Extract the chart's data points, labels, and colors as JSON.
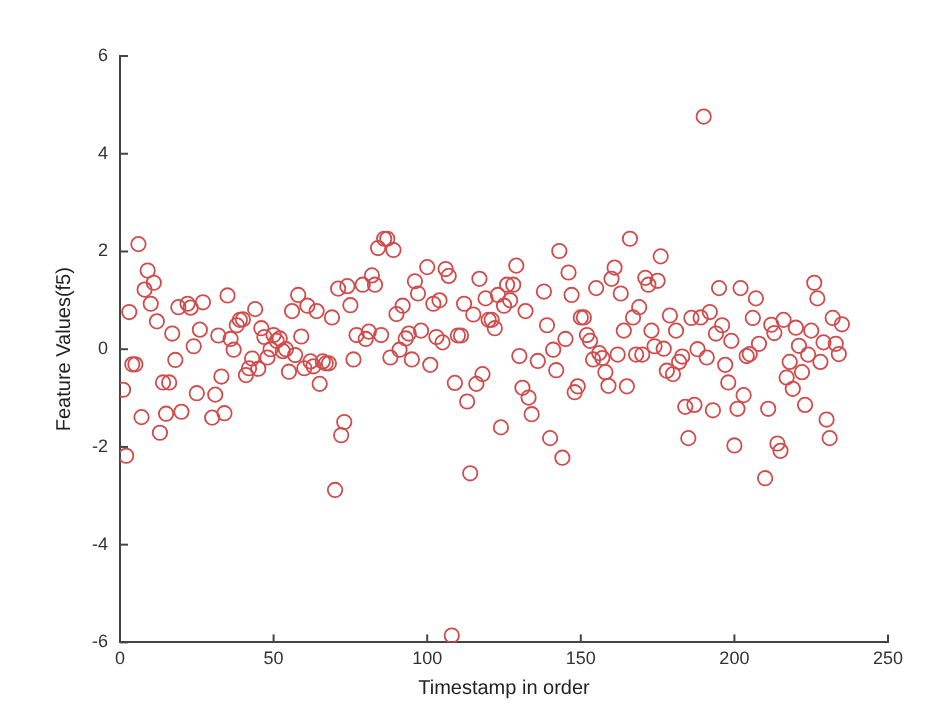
{
  "chart_data": {
    "type": "scatter",
    "xlabel": "Timestamp in order",
    "ylabel": "Feature Values(f5)",
    "marker": "circle",
    "grid": false,
    "legend": false,
    "xlim": [
      0,
      250
    ],
    "xticks": [
      0,
      50,
      100,
      150,
      200,
      250
    ],
    "ylim": [
      -6,
      6
    ],
    "yticks": [
      -6,
      -4,
      -2,
      0,
      2,
      4,
      6
    ],
    "series": [
      {
        "color": "#d24b4b",
        "x": [
          1,
          2,
          3,
          4,
          5,
          6,
          7,
          8,
          9,
          10,
          11,
          12,
          13,
          14,
          15,
          16,
          17,
          18,
          19,
          20,
          22,
          23,
          24,
          25,
          26,
          27,
          30,
          31,
          32,
          33,
          34,
          35,
          36,
          37,
          38,
          39,
          40,
          41,
          42,
          43,
          44,
          45,
          46,
          47,
          48,
          49,
          50,
          51,
          52,
          53,
          54,
          55,
          56,
          57,
          58,
          59,
          60,
          61,
          62,
          63,
          64,
          65,
          66,
          67,
          68,
          69,
          70,
          71,
          72,
          73,
          74,
          75,
          76,
          77,
          79,
          80,
          81,
          82,
          83,
          84,
          85,
          86,
          87,
          88,
          89,
          90,
          91,
          92,
          93,
          94,
          95,
          96,
          97,
          98,
          100,
          101,
          102,
          103,
          104,
          105,
          106,
          107,
          108,
          109,
          110,
          111,
          112,
          113,
          114,
          115,
          116,
          117,
          118,
          119,
          120,
          121,
          122,
          123,
          124,
          125,
          126,
          127,
          128,
          129,
          130,
          131,
          132,
          133,
          134,
          136,
          138,
          139,
          140,
          141,
          142,
          143,
          144,
          145,
          146,
          147,
          148,
          149,
          150,
          151,
          152,
          153,
          154,
          155,
          156,
          157,
          158,
          159,
          160,
          161,
          162,
          163,
          164,
          165,
          166,
          167,
          168,
          169,
          170,
          171,
          172,
          173,
          174,
          175,
          176,
          177,
          178,
          179,
          180,
          181,
          182,
          183,
          184,
          185,
          186,
          187,
          188,
          189,
          190,
          191,
          192,
          193,
          194,
          195,
          196,
          197,
          198,
          199,
          200,
          201,
          202,
          203,
          204,
          205,
          206,
          207,
          208,
          210,
          211,
          212,
          213,
          214,
          215,
          216,
          217,
          218,
          219,
          220,
          221,
          222,
          223,
          224,
          225,
          226,
          227,
          228,
          229,
          230,
          231,
          232,
          233,
          234,
          235
        ],
        "values": [
          -0.83,
          -2.18,
          0.76,
          -0.31,
          -0.31,
          2.15,
          -1.39,
          1.22,
          1.61,
          0.93,
          1.36,
          0.57,
          -1.71,
          -0.68,
          -1.32,
          -0.68,
          0.32,
          -0.22,
          0.86,
          -1.28,
          0.93,
          0.85,
          0.06,
          -0.9,
          0.4,
          0.96,
          -1.4,
          -0.93,
          0.28,
          -0.56,
          -1.31,
          1.1,
          0.21,
          -0.01,
          0.49,
          0.6,
          0.61,
          -0.53,
          -0.39,
          -0.19,
          0.82,
          -0.4,
          0.43,
          0.25,
          -0.17,
          0,
          0.29,
          0.17,
          0.22,
          -0.04,
          0,
          -0.46,
          0.78,
          -0.12,
          1.11,
          0.26,
          -0.39,
          0.89,
          -0.25,
          -0.35,
          0.78,
          -0.71,
          -0.25,
          -0.29,
          -0.29,
          0.65,
          -2.88,
          1.24,
          -1.76,
          -1.49,
          1.29,
          0.9,
          -0.21,
          0.29,
          1.32,
          0.21,
          0.36,
          1.51,
          1.32,
          2.07,
          0.29,
          2.26,
          2.26,
          -0.17,
          2.03,
          0.72,
          -0.01,
          0.89,
          0.22,
          0.32,
          -0.21,
          1.39,
          1.14,
          0.38,
          1.68,
          -0.32,
          0.93,
          0.25,
          1.0,
          0.14,
          1.64,
          1.5,
          -5.86,
          -0.69,
          0.28,
          0.28,
          0.93,
          -1.07,
          -2.54,
          0.71,
          -0.71,
          1.44,
          -0.51,
          1.04,
          0.6,
          0.6,
          0.43,
          1.11,
          -1.6,
          0.89,
          1.32,
          1.0,
          1.32,
          1.71,
          -0.14,
          -0.79,
          0.78,
          -0.99,
          -1.33,
          -0.24,
          1.18,
          0.49,
          -1.82,
          -0.01,
          -0.43,
          2.01,
          -2.22,
          0.21,
          1.57,
          1.11,
          -0.88,
          -0.76,
          0.65,
          0.65,
          0.29,
          0.17,
          -0.21,
          1.25,
          -0.08,
          -0.18,
          -0.47,
          -0.75,
          1.44,
          1.67,
          -0.11,
          1.14,
          0.38,
          -0.76,
          2.26,
          0.65,
          -0.11,
          0.86,
          -0.11,
          1.46,
          1.32,
          0.38,
          0.06,
          1.4,
          1.9,
          0.01,
          -0.44,
          0.69,
          -0.51,
          0.38,
          -0.26,
          -0.15,
          -1.18,
          -1.82,
          0.64,
          -1.14,
          0,
          0.65,
          4.76,
          -0.17,
          0.76,
          -1.25,
          0.32,
          1.25,
          0.49,
          -0.32,
          -0.68,
          0.17,
          -1.97,
          -1.22,
          1.25,
          -0.94,
          -0.14,
          -0.1,
          0.64,
          1.04,
          0.11,
          -2.64,
          -1.22,
          0.5,
          0.33,
          -1.93,
          -2.08,
          0.6,
          -0.58,
          -0.26,
          -0.81,
          0.44,
          0.07,
          -0.47,
          -1.14,
          -0.11,
          0.38,
          1.36,
          1.04,
          -0.26,
          0.14,
          -1.44,
          -1.82,
          0.64,
          0.11,
          -0.1,
          0.51
        ]
      }
    ]
  }
}
